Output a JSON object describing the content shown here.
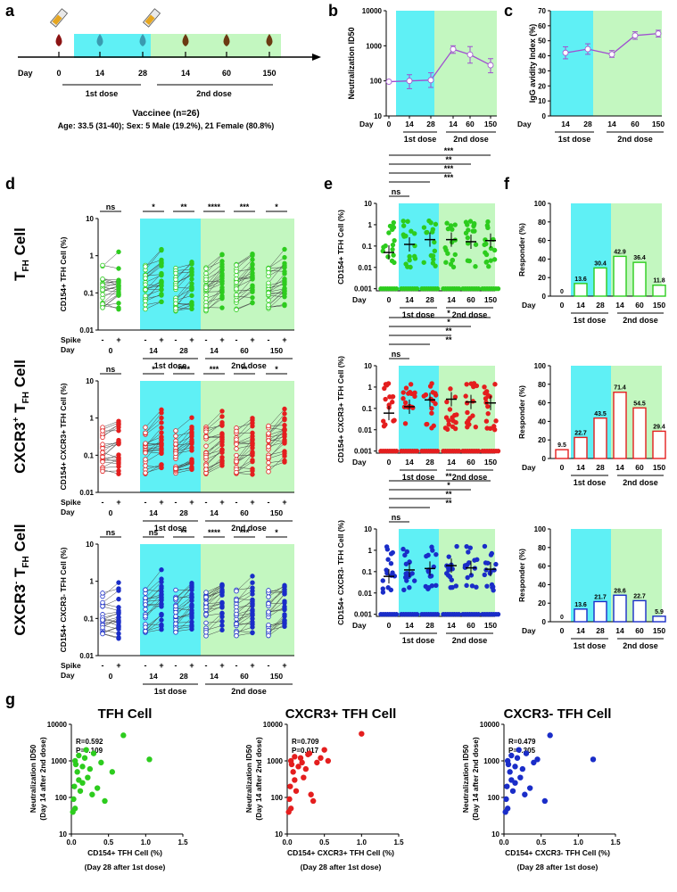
{
  "panel_labels": [
    "a",
    "b",
    "c",
    "d",
    "e",
    "f",
    "g"
  ],
  "colors": {
    "cyan": "#5ff0f5",
    "green": "#c3f7c0",
    "tfh": "#2dcc1e",
    "cxcr3p": "#e41e1e",
    "cxcr3m": "#1a2dc8",
    "purple": "#a050d0",
    "vac": "#6b3a12",
    "blood0": "#8c1414",
    "blood1": "#3a9ab0"
  },
  "timeline": {
    "day_label": "Day",
    "days": [
      "0",
      "14",
      "28",
      "14",
      "60",
      "150"
    ],
    "dose1": "1st dose",
    "dose2": "2nd dose",
    "vaccinee": "Vaccinee (n=26)",
    "demographics": "Age: 33.5 (31-40); Sex: 5 Male (19.2%), 21 Female (80.8%)"
  },
  "common": {
    "day": "Day",
    "spike": "Spike",
    "minus": "-",
    "plus": "+",
    "dose1": "1st dose",
    "dose2": "2nd dose"
  },
  "row_labels": [
    {
      "main": "T",
      "sub": "FH",
      "sup": "",
      "tail": " Cell"
    },
    {
      "main": "CXCR3",
      "sup": "+",
      "sub2": "FH",
      "tail": " Cell"
    },
    {
      "main": "CXCR3",
      "sup": "-",
      "sub2": "FH",
      "tail": " Cell"
    }
  ],
  "chart_data": [
    {
      "id": "b",
      "type": "line",
      "ylabel": "Neutralization ID50",
      "yscale": "log",
      "ylim": [
        10,
        10000
      ],
      "yticks": [
        "10",
        "100",
        "1000",
        "10000"
      ],
      "x": [
        "0",
        "14",
        "28",
        "14",
        "60",
        "150"
      ],
      "values": [
        95,
        100,
        105,
        800,
        560,
        280
      ],
      "err_low": [
        95,
        60,
        65,
        610,
        320,
        170
      ],
      "err_high": [
        95,
        150,
        170,
        1000,
        950,
        430
      ]
    },
    {
      "id": "c",
      "type": "line",
      "ylabel": "IgG avidity Index (%)",
      "ylim": [
        0,
        70
      ],
      "yticks": [
        "0",
        "10",
        "20",
        "30",
        "40",
        "50",
        "60",
        "70"
      ],
      "x": [
        "14",
        "28",
        "14",
        "60",
        "150"
      ],
      "values": [
        42,
        44.5,
        41,
        53.5,
        54.8
      ],
      "err_low": [
        38,
        41,
        39,
        51,
        52.5
      ],
      "err_high": [
        46,
        48,
        43.5,
        56,
        57
      ]
    },
    {
      "id": "d",
      "type": "scatter",
      "ylabel": "CD154+ TFH Cell (%)",
      "yticks": [
        "0.01",
        "0.1",
        "1",
        "10"
      ],
      "sig": [
        "ns",
        "*",
        "**",
        "****",
        "***",
        "*"
      ]
    },
    {
      "id": "d2",
      "type": "scatter",
      "ylabel": "CD154+ CXCR3+ TFH Cell (%)",
      "yticks": [
        "0.01",
        "0.1",
        "1",
        "10"
      ],
      "sig": [
        "ns",
        "*",
        "****",
        "***",
        "**",
        "*"
      ]
    },
    {
      "id": "d3",
      "type": "scatter",
      "ylabel": "CD154+ CXCR3- TFH Cell (%)",
      "yticks": [
        "0.01",
        "0.1",
        "1",
        "10"
      ],
      "sig": [
        "ns",
        "ns",
        "**",
        "****",
        "***",
        "*"
      ]
    },
    {
      "id": "e",
      "type": "scatter",
      "ylabel": "CD154+ TFH Cell (%)",
      "yticks": [
        "0.001",
        "0.01",
        "0.1",
        "1",
        "10"
      ],
      "sig": [
        "ns",
        "***",
        "***",
        "**",
        "***"
      ],
      "means": [
        0.05,
        0.12,
        0.2,
        0.2,
        0.16,
        0.18
      ]
    },
    {
      "id": "e2",
      "type": "scatter",
      "ylabel": "CD154+ CXCR3+ TFH Cell (%)",
      "yticks": [
        "0.001",
        "0.01",
        "0.1",
        "1",
        "10"
      ],
      "sig": [
        "ns",
        "**",
        "**",
        "*",
        "*"
      ],
      "means": [
        0.06,
        0.12,
        0.25,
        0.27,
        0.2,
        0.18
      ]
    },
    {
      "id": "e3",
      "type": "scatter",
      "ylabel": "CD154+ CXCR3- TFH Cell (%)",
      "yticks": [
        "0.001",
        "0.01",
        "0.1",
        "1",
        "10"
      ],
      "sig": [
        "ns",
        "**",
        "**",
        "*",
        "**"
      ],
      "means": [
        0.06,
        0.12,
        0.14,
        0.19,
        0.15,
        0.13
      ]
    },
    {
      "id": "f",
      "type": "bar",
      "ylabel": "Responder (%)",
      "ylim": [
        0,
        100
      ],
      "yticks": [
        "0",
        "20",
        "40",
        "60",
        "80",
        "100"
      ],
      "values": [
        0,
        13.6,
        30.4,
        42.9,
        36.4,
        11.8
      ],
      "labels": [
        "0",
        "13.6",
        "30.4",
        "42.9",
        "36.4",
        "11.8"
      ]
    },
    {
      "id": "f2",
      "type": "bar",
      "ylabel": "Responder (%)",
      "ylim": [
        0,
        100
      ],
      "yticks": [
        "0",
        "20",
        "40",
        "60",
        "80",
        "100"
      ],
      "values": [
        9.5,
        22.7,
        43.5,
        71.4,
        54.5,
        29.4
      ],
      "labels": [
        "9.5",
        "22.7",
        "43.5",
        "71.4",
        "54.5",
        "29.4"
      ]
    },
    {
      "id": "f3",
      "type": "bar",
      "ylabel": "Responder (%)",
      "ylim": [
        0,
        100
      ],
      "yticks": [
        "0",
        "20",
        "40",
        "60",
        "80",
        "100"
      ],
      "values": [
        0,
        13.6,
        21.7,
        28.6,
        22.7,
        5.9
      ],
      "labels": [
        "0",
        "13.6",
        "21.7",
        "28.6",
        "22.7",
        "5.9"
      ]
    },
    {
      "id": "g1",
      "type": "scatter",
      "title": "TFH Cell",
      "r": "R=0.592",
      "p": "P=0.109",
      "ylabel1": "Neutralization ID50",
      "ylabel2": "(Day 14 after 2nd dose)",
      "xlabel1": "CD154+ TFH Cell (%)",
      "xlabel2": "(Day 28 after 1st dose)",
      "xticks": [
        "0.0",
        "0.5",
        "1.0",
        "1.5"
      ],
      "yticks": [
        "10",
        "100",
        "1000",
        "10000"
      ],
      "x": [
        0.02,
        0.03,
        0.04,
        0.05,
        0.06,
        0.08,
        0.1,
        0.12,
        0.15,
        0.18,
        0.2,
        0.22,
        0.25,
        0.28,
        0.3,
        0.35,
        0.4,
        0.45,
        0.55,
        0.7,
        1.05,
        0.05,
        0.1,
        0.15
      ],
      "y": [
        40,
        90,
        200,
        1000,
        800,
        500,
        300,
        150,
        700,
        1200,
        2000,
        350,
        600,
        120,
        1600,
        180,
        900,
        80,
        500,
        5000,
        1100,
        50,
        1400,
        250
      ]
    },
    {
      "id": "g2",
      "type": "scatter",
      "title": "CXCR3+ TFH Cell",
      "r": "R=0.709",
      "p": "P=0.017",
      "ylabel1": "Neutralization ID50",
      "ylabel2": "(Day 14 after 2nd dose)",
      "xlabel1": "CD154+ CXCR3+ TFH Cell (%)",
      "xlabel2": "(Day 28 after 1st dose)",
      "xticks": [
        "0.0",
        "0.5",
        "1.0",
        "1.5"
      ],
      "yticks": [
        "10",
        "100",
        "1000",
        "10000"
      ],
      "x": [
        0.02,
        0.03,
        0.04,
        0.05,
        0.06,
        0.08,
        0.1,
        0.12,
        0.15,
        0.18,
        0.2,
        0.22,
        0.25,
        0.28,
        0.3,
        0.35,
        0.4,
        0.45,
        0.5,
        0.55,
        1.0,
        0.05,
        0.1,
        0.32
      ],
      "y": [
        40,
        90,
        200,
        1000,
        800,
        500,
        300,
        150,
        700,
        1200,
        900,
        350,
        600,
        1500,
        1600,
        80,
        900,
        1200,
        2000,
        1000,
        5500,
        50,
        1300,
        120
      ]
    },
    {
      "id": "g3",
      "type": "scatter",
      "title": "CXCR3- TFH Cell",
      "r": "R=0.479",
      "p": "P=0.305",
      "ylabel1": "Neutralization ID50",
      "ylabel2": "(Day 14 after 2nd dose)",
      "xlabel1": "CD154+ CXCR3- TFH Cell (%)",
      "xlabel2": "(Day 28 after 1st dose)",
      "xticks": [
        "0.0",
        "0.5",
        "1.0",
        "1.5"
      ],
      "yticks": [
        "10",
        "100",
        "1000",
        "10000"
      ],
      "x": [
        0.02,
        0.03,
        0.04,
        0.05,
        0.06,
        0.08,
        0.1,
        0.12,
        0.15,
        0.18,
        0.2,
        0.22,
        0.25,
        0.28,
        0.3,
        0.35,
        0.4,
        0.45,
        0.55,
        0.62,
        1.2,
        0.05,
        0.1,
        0.15
      ],
      "y": [
        40,
        90,
        200,
        1000,
        800,
        500,
        300,
        150,
        700,
        1200,
        2000,
        350,
        600,
        120,
        1600,
        180,
        900,
        1100,
        80,
        5000,
        1100,
        50,
        1400,
        250
      ]
    }
  ]
}
